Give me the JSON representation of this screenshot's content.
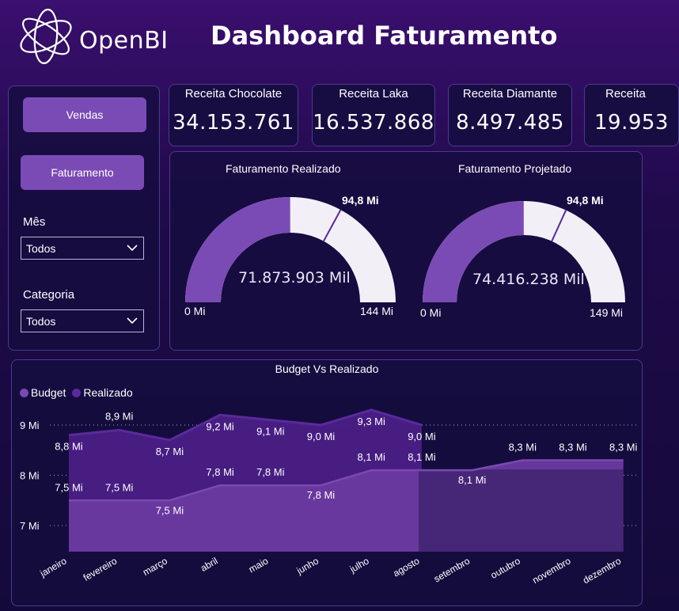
{
  "header": {
    "logo_text": "OpenBI",
    "title": "Dashboard Faturamento"
  },
  "sidebar": {
    "buttons": [
      {
        "label": "Vendas"
      },
      {
        "label": "Faturamento"
      }
    ],
    "filters": [
      {
        "label": "Mês",
        "value": "Todos"
      },
      {
        "label": "Categoria",
        "value": "Todos"
      }
    ]
  },
  "kpis": [
    {
      "label": "Receita Chocolate",
      "value": "34.153.761"
    },
    {
      "label": "Receita Laka",
      "value": "16.537.868"
    },
    {
      "label": "Receita Diamante",
      "value": "8.497.485"
    },
    {
      "label": "Receita",
      "value": "19.953"
    }
  ],
  "gauges": [
    {
      "title": "Faturamento Realizado",
      "center": "71.873.903 Mil",
      "min_label": "0 Mi",
      "max_label": "144 Mi",
      "target_label": "94,8 Mi",
      "value": 71.87,
      "target": 94.8,
      "max": 144
    },
    {
      "title": "Faturamento Projetado",
      "center": "74.416.238 Mil",
      "min_label": "0 Mi",
      "max_label": "149 Mi",
      "target_label": "94,8 Mi",
      "value": 74.42,
      "target": 94.8,
      "max": 149
    }
  ],
  "colors": {
    "budget": "#6b3aa0",
    "realizado": "#5a2a9c",
    "gauge_fill": "#7b4bb5",
    "gauge_track": "#f2f0f6",
    "accent": "#7b4bb5"
  },
  "chart_data": {
    "type": "area",
    "title": "Budget Vs Realizado",
    "categories": [
      "janeiro",
      "fevereiro",
      "março",
      "abril",
      "maio",
      "junho",
      "julho",
      "agosto",
      "setembro",
      "outubro",
      "novembro",
      "dezembro"
    ],
    "series": [
      {
        "name": "Budget",
        "values": [
          7.5,
          7.5,
          7.5,
          7.8,
          7.8,
          7.8,
          8.1,
          8.1,
          8.1,
          8.3,
          8.3,
          8.3
        ],
        "labels": [
          "7,5 Mi",
          "7,5 Mi",
          "7,5 Mi",
          "7,8 Mi",
          "7,8 Mi",
          "7,8 Mi",
          "8,1 Mi",
          "8,1 Mi",
          "8,1 Mi",
          "8,3 Mi",
          "8,3 Mi",
          "8,3 Mi"
        ]
      },
      {
        "name": "Realizado",
        "values": [
          8.8,
          8.9,
          8.7,
          9.2,
          9.1,
          9.0,
          9.3,
          9.0,
          null,
          null,
          null,
          null
        ],
        "labels": [
          "8,8 Mi",
          "8,9 Mi",
          "8,7 Mi",
          "9,2 Mi",
          "9,1 Mi",
          "9,0 Mi",
          "9,3 Mi",
          "9,0 Mi",
          null,
          null,
          null,
          null
        ]
      }
    ],
    "y_ticks": [
      {
        "value": 9,
        "label": "9 Mi"
      },
      {
        "value": 8,
        "label": "8 Mi"
      },
      {
        "value": 7,
        "label": "7 Mi"
      }
    ],
    "ylim": [
      6.5,
      9.4
    ],
    "grid": true,
    "legend_position": "top-left"
  }
}
